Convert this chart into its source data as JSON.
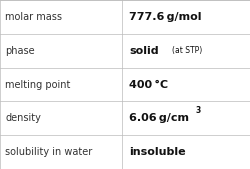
{
  "rows": [
    {
      "label": "molar mass",
      "value_main": "777.6 g/mol",
      "value_sup": null,
      "value_small": null
    },
    {
      "label": "phase",
      "value_main": "solid",
      "value_sup": null,
      "value_small": "(at STP)"
    },
    {
      "label": "melting point",
      "value_main": "400 °C",
      "value_sup": null,
      "value_small": null
    },
    {
      "label": "density",
      "value_main": "6.06 g/cm",
      "value_sup": "3",
      "value_small": null
    },
    {
      "label": "solubility in water",
      "value_main": "insoluble",
      "value_sup": null,
      "value_small": null
    }
  ],
  "col_split": 0.485,
  "background": "#ffffff",
  "border_color": "#bbbbbb",
  "label_fontsize": 7.0,
  "value_fontsize": 8.0,
  "small_fontsize": 5.5,
  "sup_fontsize": 5.5,
  "label_color": "#333333",
  "value_color": "#111111",
  "figsize": [
    2.51,
    1.69
  ],
  "dpi": 100
}
